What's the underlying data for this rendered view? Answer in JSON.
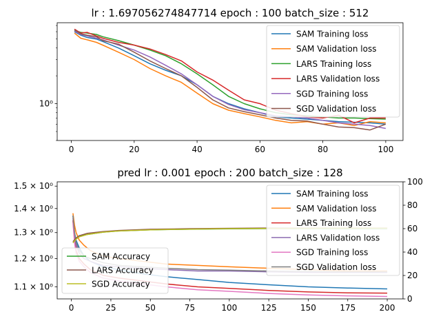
{
  "chart_data": [
    {
      "type": "line",
      "title": "lr : 1.697056274847714 epoch : 100 batch_size : 512",
      "xlabel": "",
      "ylabel": "",
      "yscale": "log",
      "xlim": [
        -4.5,
        105.5
      ],
      "ylim": [
        0.4,
        7.5
      ],
      "xticks": [
        0,
        20,
        40,
        60,
        80,
        100
      ],
      "yticks": [
        {
          "value": 1,
          "label": "10⁰"
        }
      ],
      "grid": false,
      "legend_position": "top-right",
      "series": [
        {
          "name": "SAM Training loss",
          "color": "#1f77b4",
          "x": [
            1,
            3,
            5,
            8,
            10,
            15,
            20,
            25,
            30,
            35,
            40,
            45,
            50,
            55,
            60,
            65,
            70,
            75,
            80,
            85,
            90,
            95,
            100
          ],
          "y": [
            6.0,
            5.5,
            5.2,
            5.0,
            4.7,
            4.0,
            3.3,
            2.7,
            2.3,
            2.0,
            1.6,
            1.2,
            1.0,
            0.88,
            0.8,
            0.72,
            0.7,
            0.68,
            0.66,
            0.64,
            0.63,
            0.62,
            0.6
          ]
        },
        {
          "name": "SAM Validation loss",
          "color": "#ff7f0e",
          "x": [
            1,
            3,
            5,
            8,
            10,
            15,
            20,
            25,
            30,
            35,
            40,
            45,
            50,
            55,
            60,
            65,
            70,
            75,
            80,
            85,
            90,
            95,
            100
          ],
          "y": [
            5.8,
            5.1,
            4.9,
            4.6,
            4.3,
            3.6,
            3.0,
            2.4,
            2.0,
            1.7,
            1.3,
            1.0,
            0.85,
            0.78,
            0.72,
            0.66,
            0.62,
            0.64,
            0.6,
            0.62,
            0.58,
            0.64,
            0.62
          ]
        },
        {
          "name": "LARS Training loss",
          "color": "#2ca02c",
          "x": [
            1,
            3,
            5,
            8,
            10,
            15,
            20,
            25,
            30,
            35,
            40,
            45,
            50,
            55,
            60,
            65,
            70,
            75,
            80,
            85,
            90,
            95,
            100
          ],
          "y": [
            6.2,
            5.9,
            5.8,
            5.6,
            5.3,
            4.8,
            4.3,
            3.8,
            3.3,
            2.7,
            2.1,
            1.6,
            1.2,
            1.0,
            0.88,
            0.8,
            0.76,
            0.74,
            0.72,
            0.7,
            0.7,
            0.69,
            0.68
          ]
        },
        {
          "name": "LARS Validation loss",
          "color": "#d62728",
          "x": [
            1,
            3,
            5,
            8,
            10,
            15,
            20,
            25,
            30,
            35,
            40,
            45,
            50,
            55,
            60,
            65,
            70,
            75,
            80,
            85,
            90,
            95,
            100
          ],
          "y": [
            6.4,
            5.8,
            5.9,
            5.4,
            5.1,
            4.6,
            4.3,
            3.9,
            3.4,
            2.9,
            2.2,
            1.8,
            1.4,
            1.1,
            1.0,
            0.85,
            0.78,
            0.72,
            0.7,
            0.75,
            0.62,
            0.7,
            0.7
          ]
        },
        {
          "name": "SGD Training loss",
          "color": "#9467bd",
          "x": [
            1,
            3,
            5,
            8,
            10,
            15,
            20,
            25,
            30,
            35,
            40,
            45,
            50,
            55,
            60,
            65,
            70,
            75,
            80,
            85,
            90,
            95,
            100
          ],
          "y": [
            6.1,
            5.6,
            5.4,
            5.1,
            4.9,
            4.3,
            3.8,
            3.2,
            2.6,
            2.1,
            1.6,
            1.2,
            0.98,
            0.86,
            0.8,
            0.74,
            0.72,
            0.7,
            0.66,
            0.62,
            0.6,
            0.58,
            0.54
          ]
        },
        {
          "name": "SGD Validation loss",
          "color": "#8c564b",
          "x": [
            1,
            3,
            5,
            8,
            10,
            15,
            20,
            25,
            30,
            35,
            40,
            45,
            50,
            55,
            60,
            65,
            70,
            75,
            80,
            85,
            90,
            95,
            100
          ],
          "y": [
            6.3,
            5.7,
            5.5,
            5.3,
            4.8,
            4.4,
            3.6,
            2.9,
            2.4,
            2.0,
            1.5,
            1.1,
            0.9,
            0.82,
            0.76,
            0.7,
            0.66,
            0.65,
            0.6,
            0.56,
            0.55,
            0.52,
            0.6
          ]
        }
      ]
    },
    {
      "type": "line",
      "title": "pred lr : 0.001 epoch : 200 batch_size : 128",
      "xlabel": "",
      "ylabel": "",
      "yscale": "log",
      "xlim": [
        -9,
        210
      ],
      "ylim": [
        1.06,
        1.52
      ],
      "xticks": [
        0,
        25,
        50,
        75,
        100,
        125,
        150,
        175,
        200
      ],
      "yticks": [
        {
          "value": 1.1,
          "label": "1.1 × 10⁰"
        },
        {
          "value": 1.2,
          "label": "1.2 × 10⁰"
        },
        {
          "value": 1.3,
          "label": "1.3 × 10⁰"
        },
        {
          "value": 1.4,
          "label": "1.4 × 10⁰"
        },
        {
          "value": 1.5,
          "label": "1.5 × 10⁰"
        }
      ],
      "secondary_y": {
        "ylim": [
          0,
          100
        ],
        "yticks": [
          0,
          20,
          40,
          60,
          80,
          100
        ]
      },
      "grid": false,
      "legend_position": "top-right",
      "secondary_legend_position": "lower-left",
      "series": [
        {
          "name": "SAM Training loss",
          "axis": "left",
          "color": "#1f77b4",
          "x": [
            1,
            2,
            3,
            5,
            8,
            12,
            20,
            30,
            45,
            60,
            80,
            100,
            125,
            150,
            175,
            200
          ],
          "y": [
            1.37,
            1.3,
            1.27,
            1.24,
            1.21,
            1.19,
            1.17,
            1.16,
            1.145,
            1.135,
            1.125,
            1.115,
            1.107,
            1.1,
            1.096,
            1.093
          ]
        },
        {
          "name": "SAM Validation loss",
          "axis": "left",
          "color": "#ff7f0e",
          "x": [
            1,
            2,
            3,
            5,
            8,
            12,
            20,
            30,
            45,
            60,
            80,
            100,
            125,
            150,
            175,
            200
          ],
          "y": [
            1.38,
            1.33,
            1.3,
            1.27,
            1.25,
            1.23,
            1.21,
            1.2,
            1.19,
            1.18,
            1.175,
            1.17,
            1.165,
            1.16,
            1.155,
            1.155
          ]
        },
        {
          "name": "LARS Training loss",
          "axis": "left",
          "color": "#d62728",
          "x": [
            1,
            2,
            3,
            5,
            8,
            12,
            20,
            30,
            45,
            60,
            80,
            100,
            125,
            150,
            175,
            200
          ],
          "y": [
            1.35,
            1.27,
            1.23,
            1.2,
            1.18,
            1.16,
            1.14,
            1.13,
            1.12,
            1.11,
            1.1,
            1.095,
            1.088,
            1.083,
            1.08,
            1.079
          ]
        },
        {
          "name": "LARS Validation loss",
          "axis": "left",
          "color": "#8c6bb1",
          "x": [
            1,
            2,
            3,
            5,
            8,
            12,
            20,
            30,
            45,
            60,
            80,
            100,
            125,
            150,
            175,
            200
          ],
          "y": [
            1.36,
            1.29,
            1.25,
            1.22,
            1.2,
            1.19,
            1.175,
            1.17,
            1.165,
            1.16,
            1.155,
            1.155,
            1.152,
            1.15,
            1.15,
            1.15
          ]
        },
        {
          "name": "SGD Training loss",
          "axis": "left",
          "color": "#e377c2",
          "x": [
            1,
            2,
            3,
            5,
            8,
            12,
            20,
            30,
            45,
            60,
            80,
            100,
            125,
            150,
            175,
            200
          ],
          "y": [
            1.34,
            1.26,
            1.22,
            1.19,
            1.17,
            1.15,
            1.13,
            1.12,
            1.11,
            1.1,
            1.09,
            1.085,
            1.078,
            1.073,
            1.07,
            1.068
          ]
        },
        {
          "name": "SGD Validation loss",
          "axis": "left",
          "color": "#7f7f7f",
          "x": [
            1,
            2,
            3,
            5,
            8,
            12,
            20,
            30,
            45,
            60,
            80,
            100,
            125,
            150,
            175,
            200
          ],
          "y": [
            1.37,
            1.3,
            1.26,
            1.23,
            1.21,
            1.2,
            1.185,
            1.175,
            1.17,
            1.165,
            1.16,
            1.158,
            1.155,
            1.153,
            1.152,
            1.152
          ]
        },
        {
          "name": "SAM Accuracy",
          "axis": "right",
          "color": "#2ca02c",
          "x": [
            1,
            3,
            5,
            10,
            20,
            30,
            50,
            75,
            100,
            125,
            150,
            175,
            200
          ],
          "y": [
            48,
            52,
            54,
            55,
            57,
            58,
            59,
            59.5,
            59.8,
            60,
            60,
            60,
            60
          ]
        },
        {
          "name": "LARS Accuracy",
          "axis": "right",
          "color": "#8c564b",
          "x": [
            1,
            3,
            5,
            10,
            20,
            30,
            50,
            75,
            100,
            125,
            150,
            175,
            200
          ],
          "y": [
            49,
            52,
            54,
            56,
            57.5,
            58.5,
            59.5,
            60,
            60.3,
            60.5,
            60.5,
            60.6,
            60.6
          ]
        },
        {
          "name": "SGD Accuracy",
          "axis": "right",
          "color": "#bcbd22",
          "x": [
            1,
            3,
            5,
            10,
            20,
            30,
            50,
            75,
            100,
            125,
            150,
            175,
            200
          ],
          "y": [
            48,
            51,
            53,
            55,
            57,
            58,
            59,
            59.6,
            60,
            60.2,
            60.3,
            60.4,
            60.4
          ]
        }
      ]
    }
  ]
}
